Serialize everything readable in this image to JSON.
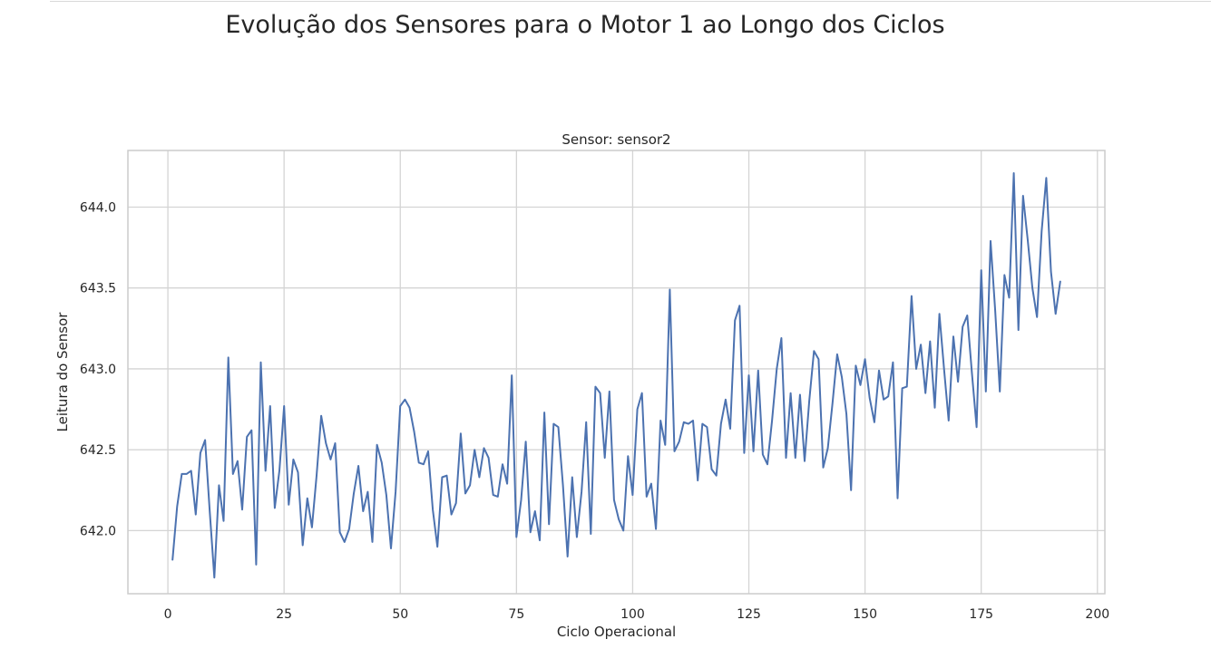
{
  "figure": {
    "suptitle": "Evolução dos Sensores para o Motor 1 ao Longo dos Ciclos"
  },
  "chart_data": {
    "type": "line",
    "title": "Sensor: sensor2",
    "xlabel": "Ciclo Operacional",
    "ylabel": "Leitura do Sensor",
    "xlim": [
      -8.6,
      201.6
    ],
    "ylim": [
      641.61,
      644.35
    ],
    "xticks": [
      0,
      25,
      50,
      75,
      100,
      125,
      150,
      175,
      200
    ],
    "xtick_labels": [
      "0",
      "25",
      "50",
      "75",
      "100",
      "125",
      "150",
      "175",
      "200"
    ],
    "yticks": [
      642.0,
      642.5,
      643.0,
      643.5,
      644.0
    ],
    "ytick_labels": [
      "642.0",
      "642.5",
      "643.0",
      "643.5",
      "644.0"
    ],
    "grid": true,
    "color": "#4c72b0",
    "series": [
      {
        "x": [
          1,
          2,
          3,
          4,
          5,
          6,
          7,
          8,
          9,
          10,
          11,
          12,
          13,
          14,
          15,
          16,
          17,
          18,
          19,
          20,
          21,
          22,
          23,
          24,
          25,
          26,
          27,
          28,
          29,
          30,
          31,
          32,
          33,
          34,
          35,
          36,
          37,
          38,
          39,
          40,
          41,
          42,
          43,
          44,
          45,
          46,
          47,
          48,
          49,
          50,
          51,
          52,
          53,
          54,
          55,
          56,
          57,
          58,
          59,
          60,
          61,
          62,
          63,
          64,
          65,
          66,
          67,
          68,
          69,
          70,
          71,
          72,
          73,
          74,
          75,
          76,
          77,
          78,
          79,
          80,
          81,
          82,
          83,
          84,
          85,
          86,
          87,
          88,
          89,
          90,
          91,
          92,
          93,
          94,
          95,
          96,
          97,
          98,
          99,
          100,
          101,
          102,
          103,
          104,
          105,
          106,
          107,
          108,
          109,
          110,
          111,
          112,
          113,
          114,
          115,
          116,
          117,
          118,
          119,
          120,
          121,
          122,
          123,
          124,
          125,
          126,
          127,
          128,
          129,
          130,
          131,
          132,
          133,
          134,
          135,
          136,
          137,
          138,
          139,
          140,
          141,
          142,
          143,
          144,
          145,
          146,
          147,
          148,
          149,
          150,
          151,
          152,
          153,
          154,
          155,
          156,
          157,
          158,
          159,
          160,
          161,
          162,
          163,
          164,
          165,
          166,
          167,
          168,
          169,
          170,
          171,
          172,
          173,
          174,
          175,
          176,
          177,
          178,
          179,
          180,
          181,
          182,
          183,
          184,
          185,
          186,
          187,
          188,
          189,
          190,
          191,
          192
        ],
        "values": [
          641.82,
          642.15,
          642.35,
          642.35,
          642.37,
          642.1,
          642.48,
          642.56,
          642.12,
          641.71,
          642.28,
          642.06,
          643.07,
          642.35,
          642.43,
          642.13,
          642.58,
          642.62,
          641.79,
          643.04,
          642.37,
          642.77,
          642.14,
          642.37,
          642.77,
          642.16,
          642.44,
          642.36,
          641.91,
          642.2,
          642.02,
          642.34,
          642.71,
          642.54,
          642.44,
          642.54,
          641.99,
          641.93,
          642.01,
          642.23,
          642.4,
          642.12,
          642.24,
          641.93,
          642.53,
          642.42,
          642.22,
          641.89,
          642.24,
          642.77,
          642.81,
          642.76,
          642.61,
          642.42,
          642.41,
          642.49,
          642.13,
          641.9,
          642.33,
          642.34,
          642.1,
          642.17,
          642.6,
          642.23,
          642.28,
          642.5,
          642.33,
          642.51,
          642.45,
          642.22,
          642.21,
          642.41,
          642.29,
          642.96,
          641.96,
          642.19,
          642.55,
          641.99,
          642.12,
          641.94,
          642.73,
          642.04,
          642.66,
          642.64,
          642.28,
          641.84,
          642.33,
          641.96,
          642.24,
          642.67,
          641.98,
          642.89,
          642.85,
          642.45,
          642.86,
          642.19,
          642.07,
          642.0,
          642.46,
          642.22,
          642.75,
          642.85,
          642.21,
          642.29,
          642.01,
          642.68,
          642.53,
          643.49,
          642.49,
          642.55,
          642.67,
          642.66,
          642.68,
          642.31,
          642.66,
          642.64,
          642.38,
          642.34,
          642.66,
          642.81,
          642.63,
          643.3,
          643.39,
          642.48,
          642.96,
          642.49,
          642.99,
          642.47,
          642.41,
          642.68,
          643.0,
          643.19,
          642.45,
          642.85,
          642.45,
          642.84,
          642.43,
          642.8,
          643.11,
          643.06,
          642.39,
          642.51,
          642.79,
          643.09,
          642.95,
          642.72,
          642.25,
          643.02,
          642.9,
          643.06,
          642.82,
          642.67,
          642.99,
          642.81,
          642.83,
          643.04,
          642.2,
          642.88,
          642.89,
          643.45,
          643.0,
          643.15,
          642.85,
          643.17,
          642.76,
          643.34,
          643.0,
          642.68,
          643.2,
          642.92,
          643.26,
          643.33,
          642.97,
          642.64,
          643.61,
          642.86,
          643.79,
          643.36,
          642.86,
          643.58,
          643.44,
          644.21,
          643.24,
          644.07,
          643.8,
          643.5,
          643.32,
          643.85,
          644.18,
          643.6,
          643.34,
          643.54
        ]
      }
    ]
  }
}
